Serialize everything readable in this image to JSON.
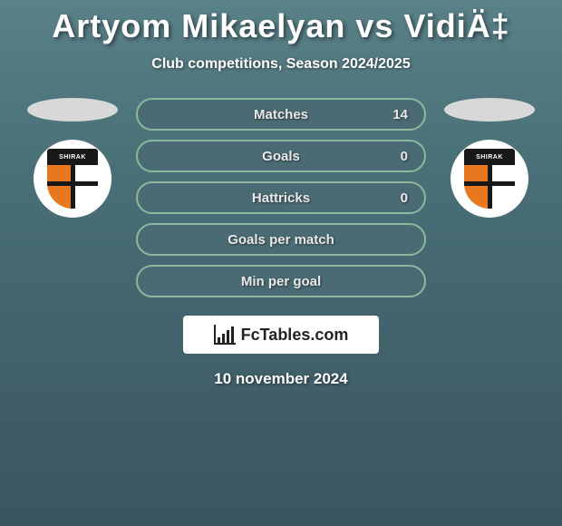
{
  "header": {
    "title": "Artyom Mikaelyan vs VidiÄ‡",
    "subtitle": "Club competitions, Season 2024/2025"
  },
  "badge": {
    "text": "SHIRAK",
    "top_color": "#181818",
    "left_color": "#e87820",
    "right_color": "#ffffff"
  },
  "stats": [
    {
      "label": "Matches",
      "right_value": "14"
    },
    {
      "label": "Goals",
      "right_value": "0"
    },
    {
      "label": "Hattricks",
      "right_value": "0"
    },
    {
      "label": "Goals per match",
      "right_value": ""
    },
    {
      "label": "Min per goal",
      "right_value": ""
    }
  ],
  "pill_style": {
    "background": "#4a6b73",
    "border_color": "#8bb89f",
    "text_color": "#e8e8e8",
    "fontsize": 15,
    "height": 36
  },
  "logo": {
    "text": "FcTables.com"
  },
  "footer": {
    "date": "10 november 2024"
  },
  "colors": {
    "bg_top": "#5a8088",
    "bg_bottom": "#3a5560",
    "oval": "#d8d8d8",
    "badge_bg": "#ffffff"
  }
}
